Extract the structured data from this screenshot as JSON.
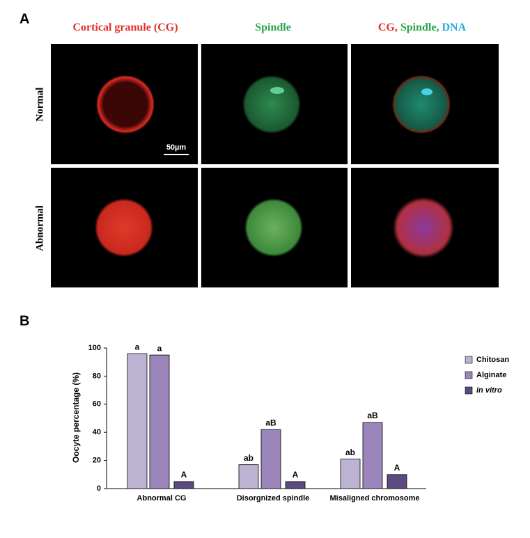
{
  "panel_a": {
    "label": "A",
    "column_titles": [
      {
        "parts": [
          {
            "text": "Cortical granule (CG)",
            "color": "#e0302a"
          }
        ]
      },
      {
        "parts": [
          {
            "text": "Spindle",
            "color": "#2aa64a"
          }
        ]
      },
      {
        "parts": [
          {
            "text": "CG, ",
            "color": "#e0302a"
          },
          {
            "text": "Spindle, ",
            "color": "#2aa64a"
          },
          {
            "text": "DNA",
            "color": "#27a9e1"
          }
        ]
      }
    ],
    "row_titles": [
      "Normal",
      "Abnormal"
    ],
    "scale_bar": "50µm"
  },
  "panel_b_label": "B",
  "chart_data": {
    "type": "bar",
    "categories": [
      "Abnormal CG",
      "Disorgnized spindle",
      "Misaligned chromosome"
    ],
    "y_label": "Oocyte percentage (%)",
    "ylim": [
      0,
      100
    ],
    "yticks": [
      0,
      20,
      40,
      60,
      80,
      100
    ],
    "series": [
      {
        "name": "Chitosan",
        "color": "#bcb3d3",
        "values": [
          96,
          17,
          21
        ],
        "letters": [
          "a",
          "ab",
          "ab"
        ]
      },
      {
        "name": "Alginate",
        "color": "#9b85bb",
        "values": [
          95,
          42,
          47
        ],
        "letters": [
          "a",
          "aB",
          "aB"
        ]
      },
      {
        "name": "in vitro",
        "color": "#5e4a82",
        "values": [
          5,
          5,
          10
        ],
        "letters": [
          "A",
          "A",
          "A"
        ]
      }
    ]
  }
}
